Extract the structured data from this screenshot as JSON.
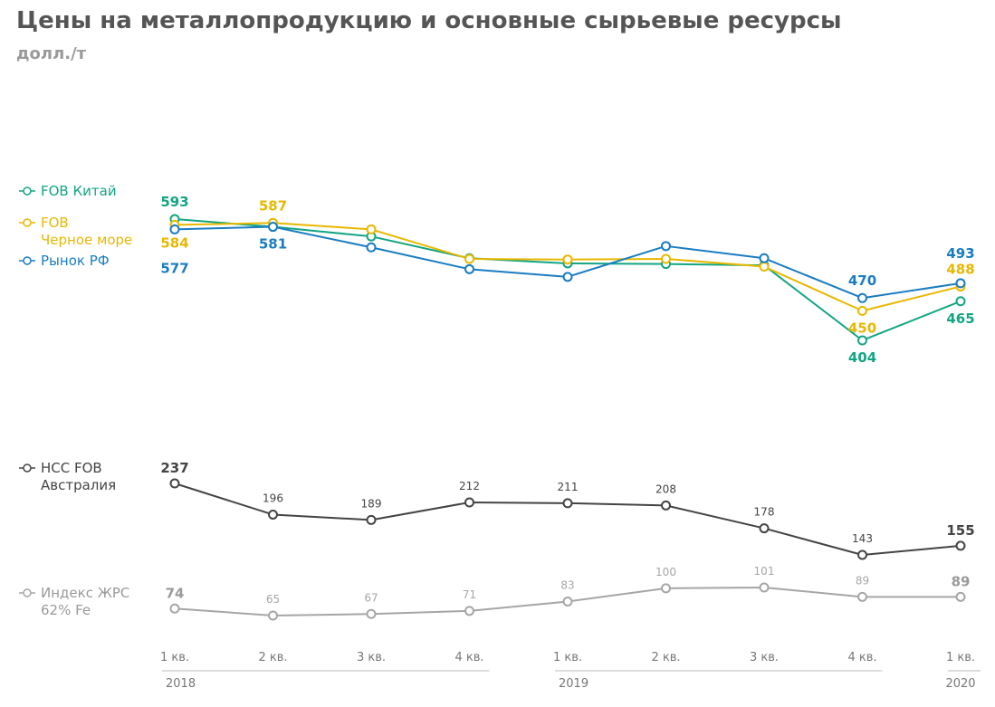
{
  "chart_data": {
    "type": "line",
    "title": "Цены на металлопродукцию и основные сырьевые ресурсы",
    "subtitle": "долл./т",
    "categories": [
      "1 кв.",
      "2 кв.",
      "3 кв.",
      "4 кв.",
      "1 кв.",
      "2 кв.",
      "3 кв.",
      "4 кв.",
      "1 кв."
    ],
    "years": [
      {
        "label": "2018",
        "from": 0,
        "to": 3
      },
      {
        "label": "2019",
        "from": 4,
        "to": 7
      },
      {
        "label": "2020",
        "from": 8,
        "to": 8
      }
    ],
    "panels": [
      {
        "name": "steel",
        "ylim": [
          380,
          610
        ],
        "series": [
          {
            "key": "fob-china",
            "legend": [
              "FOB Китай"
            ],
            "color": "#13a583",
            "values": [
              593,
              581,
              566,
              532,
              524,
              523,
              521,
              404,
              465
            ],
            "labels": [
              {
                "i": 0,
                "text": "593",
                "pos": "left-above"
              },
              {
                "i": 7,
                "text": "404",
                "pos": "below"
              },
              {
                "i": 8,
                "text": "465",
                "pos": "below"
              }
            ]
          },
          {
            "key": "fob-black-sea",
            "legend": [
              "FOB",
              "Черное море"
            ],
            "color": "#e8b800",
            "values": [
              584,
              587,
              577,
              531,
              530,
              531,
              519,
              450,
              488
            ],
            "labels": [
              {
                "i": 0,
                "text": "584",
                "pos": "left-below"
              },
              {
                "i": 1,
                "text": "587",
                "pos": "above"
              },
              {
                "i": 7,
                "text": "450",
                "pos": "below"
              },
              {
                "i": 8,
                "text": "488",
                "pos": "above"
              }
            ]
          },
          {
            "key": "russia-market",
            "legend": [
              "Рынок РФ"
            ],
            "color": "#1a7dc1",
            "values": [
              577,
              581,
              549,
              515,
              503,
              551,
              532,
              470,
              493
            ],
            "labels": [
              {
                "i": 0,
                "text": "577",
                "pos": "left-far"
              },
              {
                "i": 1,
                "text": "581",
                "pos": "below"
              },
              {
                "i": 7,
                "text": "470",
                "pos": "above"
              },
              {
                "i": 8,
                "text": "493",
                "pos": "above-high"
              }
            ]
          }
        ]
      },
      {
        "name": "coking-coal",
        "ylim": [
          143,
          237
        ],
        "series": [
          {
            "key": "hcc-fob-australia",
            "legend": [
              "HCC FOB",
              "Австралия"
            ],
            "color": "#444444",
            "values": [
              237,
              196,
              189,
              212,
              211,
              208,
              178,
              143,
              155
            ],
            "labels": [
              {
                "i": 0,
                "text": "237",
                "pos": "above-big"
              },
              {
                "i": 1,
                "text": "196",
                "pos": "above"
              },
              {
                "i": 2,
                "text": "189",
                "pos": "above"
              },
              {
                "i": 3,
                "text": "212",
                "pos": "above"
              },
              {
                "i": 4,
                "text": "211",
                "pos": "above"
              },
              {
                "i": 5,
                "text": "208",
                "pos": "above"
              },
              {
                "i": 6,
                "text": "178",
                "pos": "above"
              },
              {
                "i": 7,
                "text": "143",
                "pos": "above"
              },
              {
                "i": 8,
                "text": "155",
                "pos": "above-big"
              }
            ]
          }
        ]
      },
      {
        "name": "iron-ore",
        "ylim": [
          65,
          101
        ],
        "series": [
          {
            "key": "jrs-index-62fe",
            "legend": [
              "Индекс ЖРС",
              "62% Fe"
            ],
            "color": "#a6a6a6",
            "values": [
              74,
              65,
              67,
              71,
              83,
              100,
              101,
              89,
              89
            ],
            "labels": [
              {
                "i": 0,
                "text": "74",
                "pos": "above-big"
              },
              {
                "i": 1,
                "text": "65",
                "pos": "above"
              },
              {
                "i": 2,
                "text": "67",
                "pos": "above"
              },
              {
                "i": 3,
                "text": "71",
                "pos": "above"
              },
              {
                "i": 4,
                "text": "83",
                "pos": "above"
              },
              {
                "i": 5,
                "text": "100",
                "pos": "above"
              },
              {
                "i": 6,
                "text": "101",
                "pos": "above"
              },
              {
                "i": 7,
                "text": "89",
                "pos": "above"
              },
              {
                "i": 8,
                "text": "89",
                "pos": "above-big"
              }
            ]
          }
        ]
      }
    ]
  }
}
